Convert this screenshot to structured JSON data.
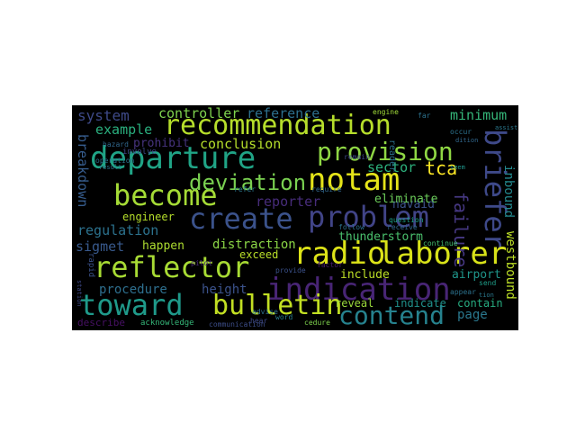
{
  "words": [
    {
      "id": "recommendation",
      "text": "recommendation",
      "color": "#b6de2b"
    },
    {
      "id": "departure",
      "text": "departure",
      "color": "#20a486"
    },
    {
      "id": "provision",
      "text": "provision",
      "color": "#8fd744"
    },
    {
      "id": "notam",
      "text": "notam",
      "color": "#e5e419"
    },
    {
      "id": "become",
      "text": "become",
      "color": "#a5db36"
    },
    {
      "id": "deviation",
      "text": "deviation",
      "color": "#7ad151"
    },
    {
      "id": "create",
      "text": "create",
      "color": "#3b528b"
    },
    {
      "id": "problem",
      "text": "problem",
      "color": "#414487"
    },
    {
      "id": "briefer",
      "text": "briefer",
      "color": "#3e4989"
    },
    {
      "id": "reflector",
      "text": "reflector",
      "color": "#a8db34"
    },
    {
      "id": "radio",
      "text": "radio",
      "color": "#dde318"
    },
    {
      "id": "laborer",
      "text": "laborer",
      "color": "#d8e219"
    },
    {
      "id": "indication",
      "text": "indication",
      "color": "#482575"
    },
    {
      "id": "toward",
      "text": "toward",
      "color": "#1f9a8a"
    },
    {
      "id": "bulletin",
      "text": "bulletin",
      "color": "#c2df23"
    },
    {
      "id": "contend",
      "text": "contend",
      "color": "#26828e"
    },
    {
      "id": "system",
      "text": "system",
      "color": "#3e4a89"
    },
    {
      "id": "controller",
      "text": "controller",
      "color": "#7fd34e"
    },
    {
      "id": "reference",
      "text": "reference",
      "color": "#2d708e"
    },
    {
      "id": "minimum",
      "text": "minimum",
      "color": "#35b779"
    },
    {
      "id": "example",
      "text": "example",
      "color": "#2ab07f"
    },
    {
      "id": "prohibit",
      "text": "prohibit",
      "color": "#46337e"
    },
    {
      "id": "conclusion",
      "text": "conclusion",
      "color": "#b5de2b"
    },
    {
      "id": "breakdown",
      "text": "breakdown",
      "color": "#365c8d"
    },
    {
      "id": "tca",
      "text": "tca",
      "color": "#fde725"
    },
    {
      "id": "sector",
      "text": "sector",
      "color": "#2db27d"
    },
    {
      "id": "reporter",
      "text": "reporter",
      "color": "#472c7a"
    },
    {
      "id": "navaid",
      "text": "navaid",
      "color": "#3b528b"
    },
    {
      "id": "eliminate",
      "text": "eliminate",
      "color": "#6ccd5a"
    },
    {
      "id": "failure",
      "text": "failure",
      "color": "#453781"
    },
    {
      "id": "inbound",
      "text": "inbound",
      "color": "#23898e"
    },
    {
      "id": "engineer",
      "text": "engineer",
      "color": "#b5de2b"
    },
    {
      "id": "regulation",
      "text": "regulation",
      "color": "#2c728e"
    },
    {
      "id": "thunderstorm",
      "text": "thunderstorm",
      "color": "#4ac16d"
    },
    {
      "id": "sigmet",
      "text": "sigmet",
      "color": "#38598c"
    },
    {
      "id": "happen",
      "text": "happen",
      "color": "#addc30"
    },
    {
      "id": "distraction",
      "text": "distraction",
      "color": "#8bd646"
    },
    {
      "id": "exceed",
      "text": "exceed",
      "color": "#b8de29"
    },
    {
      "id": "include",
      "text": "include",
      "color": "#bddf26"
    },
    {
      "id": "airport",
      "text": "airport",
      "color": "#1f968b"
    },
    {
      "id": "westbound",
      "text": "westbound",
      "color": "#bddf26"
    },
    {
      "id": "procedure",
      "text": "procedure",
      "color": "#2e6f8e"
    },
    {
      "id": "height",
      "text": "height",
      "color": "#3b528b"
    },
    {
      "id": "reveal",
      "text": "reveal",
      "color": "#9bd93c"
    },
    {
      "id": "indicate",
      "text": "indicate",
      "color": "#20928c"
    },
    {
      "id": "contain",
      "text": "contain",
      "color": "#27ad81"
    },
    {
      "id": "page",
      "text": "page",
      "color": "#2a788e"
    },
    {
      "id": "describe",
      "text": "describe",
      "color": "#471164"
    },
    {
      "id": "acknowledge",
      "text": "acknowledge",
      "color": "#35b779"
    },
    {
      "id": "hazard",
      "text": "hazard",
      "color": "#31688e"
    },
    {
      "id": "involve",
      "text": "involve",
      "color": "#3e4989"
    },
    {
      "id": "operation",
      "text": "operation",
      "color": "#2c728e"
    },
    {
      "id": "reader",
      "text": "reader",
      "color": "#2c728e"
    },
    {
      "id": "refer",
      "text": "refer",
      "color": "#2a788e"
    },
    {
      "id": "advise",
      "text": "advise",
      "color": "#2d708e"
    },
    {
      "id": "hear",
      "text": "hear",
      "color": "#3e4a89"
    },
    {
      "id": "factor",
      "text": "factor",
      "color": "#481d6f"
    },
    {
      "id": "pilot",
      "text": "pilot",
      "color": "#482878"
    },
    {
      "id": "word",
      "text": "word",
      "color": "#287d8e"
    },
    {
      "id": "provide",
      "text": "provide",
      "color": "#3b528b"
    },
    {
      "id": "cedure",
      "text": "cedure",
      "color": "#7fd34e"
    },
    {
      "id": "communication",
      "text": "communication",
      "color": "#3d4e8a"
    },
    {
      "id": "continue",
      "text": "continue",
      "color": "#44bf70"
    },
    {
      "id": "appear",
      "text": "appear",
      "color": "#2c728e"
    },
    {
      "id": "send",
      "text": "send",
      "color": "#1f9e89"
    },
    {
      "id": "question",
      "text": "question",
      "color": "#1fa088"
    },
    {
      "id": "receive",
      "text": "receive",
      "color": "#31688e"
    },
    {
      "id": "follow",
      "text": "follow",
      "color": "#2d708e"
    },
    {
      "id": "remain",
      "text": "remain",
      "color": "#3e4989"
    },
    {
      "id": "require",
      "text": "require",
      "color": "#31688e"
    },
    {
      "id": "engine",
      "text": "engine",
      "color": "#a0da39"
    },
    {
      "id": "occur",
      "text": "occur",
      "color": "#2c728e"
    },
    {
      "id": "rapid",
      "text": "rapid",
      "color": "#3b528b"
    },
    {
      "id": "assist",
      "text": "assist",
      "color": "#2a788e"
    },
    {
      "id": "station",
      "text": "station",
      "color": "#3e4989"
    },
    {
      "id": "result",
      "text": "result",
      "color": "#2c728e"
    },
    {
      "id": "dition",
      "text": "dition",
      "color": "#31688e"
    },
    {
      "id": "far",
      "text": "far",
      "color": "#2c728e"
    },
    {
      "id": "seem",
      "text": "seem",
      "color": "#1f968b"
    },
    {
      "id": "tion",
      "text": "tion",
      "color": "#2a788e"
    }
  ]
}
